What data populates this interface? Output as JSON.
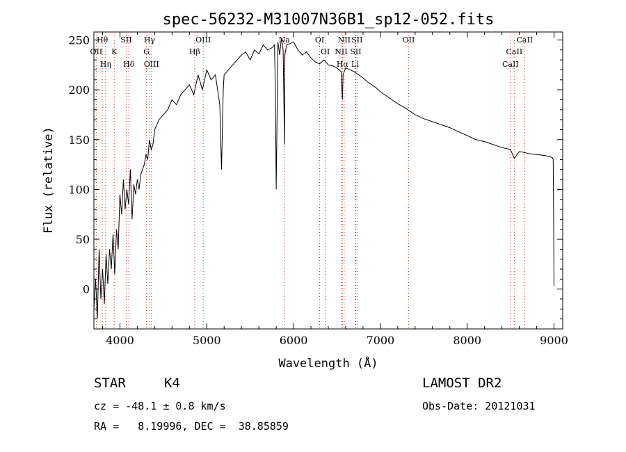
{
  "chart_data": {
    "type": "line",
    "title": "spec-56232-M31007N36B1_sp12-052.fits",
    "xlabel": "Wavelength (Å)",
    "ylabel": "Flux (relative)",
    "xlim": [
      3700,
      9100
    ],
    "ylim": [
      -40,
      258
    ],
    "xticks": [
      4000,
      5000,
      6000,
      7000,
      8000,
      9000
    ],
    "yticks": [
      0,
      50,
      100,
      150,
      200,
      250
    ],
    "grid": false,
    "series": [
      {
        "x": [
          3700,
          3720,
          3740,
          3760,
          3780,
          3800,
          3820,
          3840,
          3860,
          3880,
          3900,
          3920,
          3940,
          3960,
          3980,
          4000,
          4020,
          4040,
          4060,
          4080,
          4100,
          4120,
          4140,
          4160,
          4180,
          4200,
          4220,
          4240,
          4260,
          4280,
          4300,
          4320,
          4340,
          4360,
          4380,
          4400,
          4450,
          4500,
          4550,
          4600,
          4650,
          4700,
          4750,
          4800,
          4850,
          4900,
          4950,
          5000,
          5050,
          5100,
          5150,
          5170,
          5180,
          5190,
          5200,
          5250,
          5300,
          5350,
          5400,
          5450,
          5500,
          5550,
          5600,
          5650,
          5700,
          5750,
          5780,
          5790,
          5800,
          5820,
          5840,
          5860,
          5880,
          5890,
          5895,
          5900,
          5920,
          5950,
          6000,
          6050,
          6100,
          6150,
          6200,
          6250,
          6300,
          6350,
          6400,
          6450,
          6500,
          6550,
          6563,
          6570,
          6600,
          6650,
          6700,
          6750,
          6800,
          6850,
          6900,
          6950,
          7000,
          7100,
          7200,
          7300,
          7400,
          7450,
          7500,
          7600,
          7700,
          7800,
          7900,
          8000,
          8100,
          8200,
          8300,
          8400,
          8498,
          8542,
          8600,
          8662,
          8700,
          8800,
          8900,
          8950,
          8980,
          8990,
          8995,
          9000
        ],
        "y": [
          -20,
          10,
          -30,
          40,
          -10,
          20,
          -15,
          35,
          5,
          40,
          20,
          55,
          15,
          60,
          40,
          95,
          75,
          110,
          80,
          100,
          85,
          120,
          70,
          105,
          95,
          110,
          100,
          115,
          120,
          125,
          135,
          130,
          150,
          140,
          145,
          160,
          170,
          175,
          180,
          190,
          185,
          195,
          200,
          205,
          195,
          215,
          200,
          220,
          210,
          215,
          185,
          120,
          160,
          200,
          215,
          220,
          225,
          230,
          235,
          238,
          230,
          240,
          236,
          245,
          240,
          242,
          245,
          200,
          100,
          248,
          235,
          252,
          240,
          180,
          145,
          235,
          245,
          246,
          248,
          240,
          235,
          238,
          232,
          228,
          226,
          230,
          225,
          224,
          222,
          218,
          190,
          215,
          222,
          220,
          218,
          215,
          212,
          208,
          205,
          202,
          198,
          192,
          186,
          181,
          175,
          173,
          171,
          168,
          165,
          162,
          158,
          154,
          150,
          148,
          145,
          142,
          140,
          131,
          138,
          137,
          136,
          135,
          134,
          133,
          132,
          130,
          80,
          3
        ]
      }
    ],
    "spectral_lines": [
      {
        "label": "Hθ",
        "x": 3797
      },
      {
        "label": "K",
        "x": 3934
      },
      {
        "label": "SII",
        "x": 4072
      },
      {
        "label": "Hγ",
        "x": 4340
      },
      {
        "label": "G",
        "x": 4305
      },
      {
        "label": "OIII",
        "x": 4959
      },
      {
        "label": "Hβ",
        "x": 4861
      },
      {
        "label": "OI",
        "x": 6300
      },
      {
        "label": "OI",
        "x": 6364
      },
      {
        "label": "NII",
        "x": 6583
      },
      {
        "label": "SII",
        "x": 6716
      },
      {
        "label": "Hα",
        "x": 6563
      },
      {
        "label": "SII",
        "x": 6731
      },
      {
        "label": "OII",
        "x": 7325
      },
      {
        "label": "CaII",
        "x": 8662
      },
      {
        "label": "CaII",
        "x": 8542
      },
      {
        "label": "CaII",
        "x": 8498
      },
      {
        "label": "OII",
        "x": 3727
      },
      {
        "label": "Hη",
        "x": 3835
      },
      {
        "label": "Hδ",
        "x": 4102
      },
      {
        "label": "OIII",
        "x": 4363
      },
      {
        "label": "Na",
        "x": 5893
      },
      {
        "label": "NII",
        "x": 6548
      },
      {
        "label": "Li",
        "x": 6708
      }
    ]
  },
  "info": {
    "object_class": "STAR",
    "subclass": "K4",
    "survey": "LAMOST DR2",
    "redshift_line": "cz = -48.1 ± 0.8 km/s",
    "obs_date_line": "Obs-Date: 20121031",
    "coords_line": "RA =   8.19996, DEC =  38.85859"
  },
  "colors": {
    "line": "#000000",
    "marker": "#cc3333",
    "background": "#ffffff"
  }
}
